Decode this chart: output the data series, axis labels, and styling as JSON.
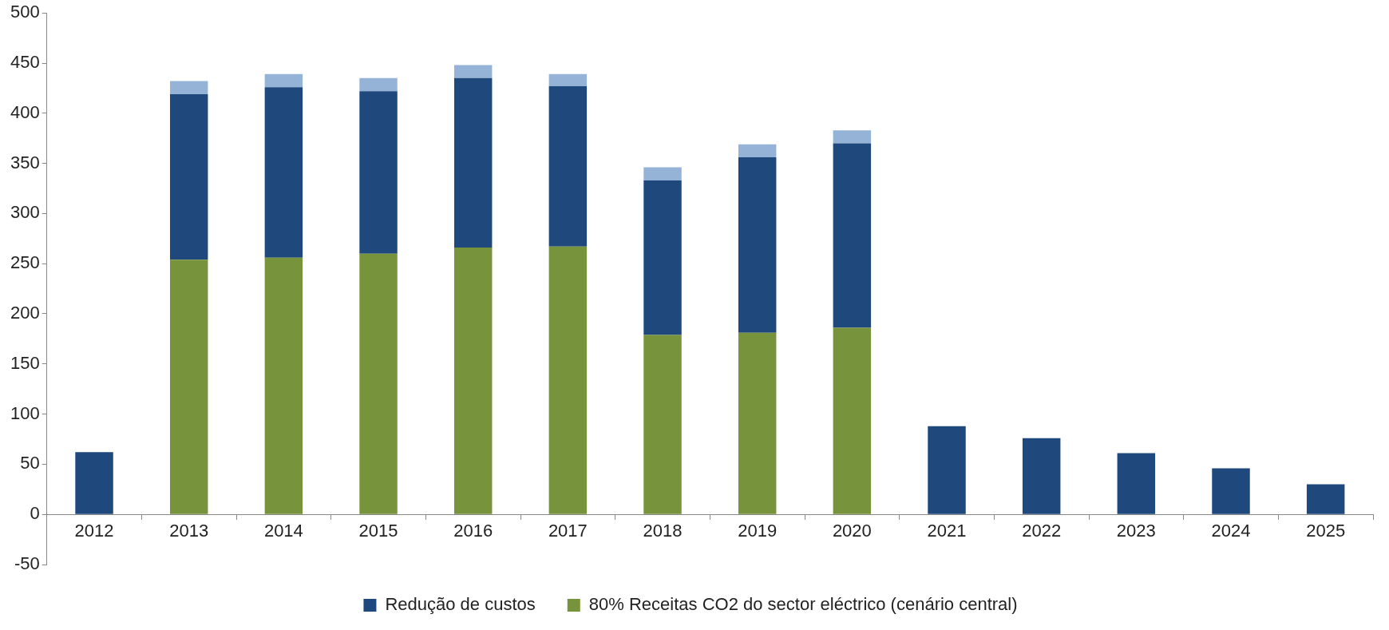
{
  "chart_data": {
    "type": "bar",
    "stacked": true,
    "categories": [
      "2012",
      "2013",
      "2014",
      "2015",
      "2016",
      "2017",
      "2018",
      "2019",
      "2020",
      "2021",
      "2022",
      "2023",
      "2024",
      "2025"
    ],
    "series": [
      {
        "name": "80% Receitas CO2 do sector eléctrico (cenário central)",
        "color": "#77933c",
        "values": [
          null,
          254,
          256,
          260,
          266,
          267,
          179,
          181,
          186,
          null,
          null,
          null,
          null,
          null
        ]
      },
      {
        "name": "Redução de custos",
        "color": "#1f497d",
        "values": [
          62,
          165,
          170,
          162,
          169,
          160,
          154,
          175,
          184,
          88,
          76,
          61,
          46,
          30
        ]
      },
      {
        "color": "#95b3d7",
        "values": [
          null,
          13,
          13,
          13,
          13,
          12,
          13,
          13,
          13,
          null,
          null,
          null,
          null,
          null
        ]
      }
    ],
    "ylim": [
      -50,
      500
    ],
    "yticks": [
      -50,
      0,
      50,
      100,
      150,
      200,
      250,
      300,
      350,
      400,
      450,
      500
    ],
    "grid": false,
    "legend": "bottom"
  }
}
